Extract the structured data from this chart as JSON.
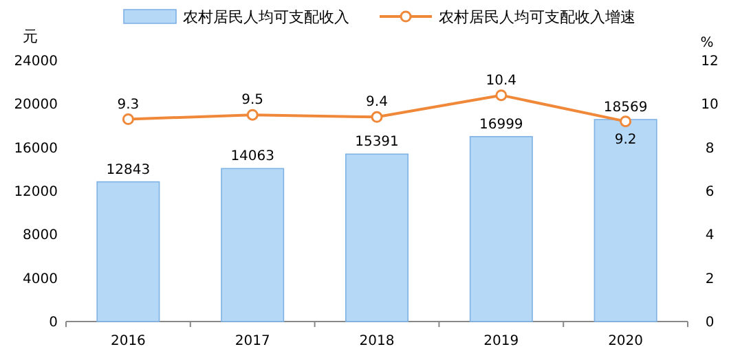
{
  "chart_data": {
    "type": "bar",
    "ylabel": "元",
    "y2label": "%",
    "categories": [
      "2016",
      "2017",
      "2018",
      "2019",
      "2020"
    ],
    "series": [
      {
        "name": "农村居民人均可支配收入",
        "color": "#b5d8f7",
        "values": [
          12843,
          14063,
          15391,
          16999,
          18569
        ]
      },
      {
        "name": "农村居民人均可支配收入增速",
        "type": "line",
        "axis": "y2",
        "color": "#f0883a",
        "marker": "circle",
        "values": [
          9.3,
          9.5,
          9.4,
          10.4,
          9.2
        ]
      }
    ],
    "ylim": [
      0,
      24000
    ],
    "yticks": [
      0,
      4000,
      8000,
      12000,
      16000,
      20000,
      24000
    ],
    "y2lim": [
      0,
      12
    ],
    "y2ticks": [
      0,
      2,
      4,
      6,
      8,
      10,
      12
    ],
    "data_labels": true,
    "legend": "top",
    "grid": false
  }
}
